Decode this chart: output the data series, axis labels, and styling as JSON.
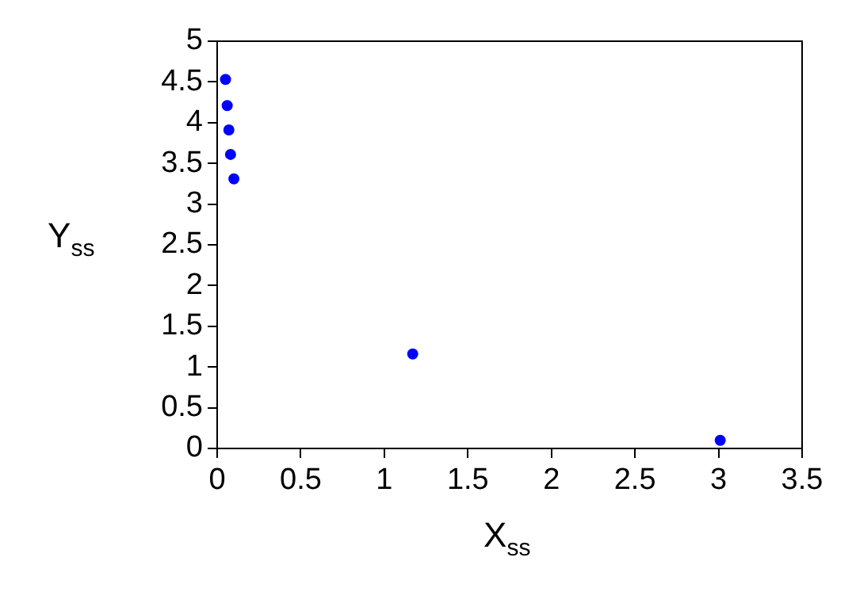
{
  "chart_data": {
    "type": "scatter",
    "xlabel": "X$_{ss}$",
    "ylabel": "Y$_{ss}$",
    "series": [
      {
        "color": "#0000ff",
        "x": [
          0.05,
          0.06,
          0.07,
          0.08,
          0.1,
          1.17,
          3.01
        ],
        "values": [
          4.53,
          4.21,
          3.91,
          3.61,
          3.31,
          1.16,
          0.1
        ]
      }
    ],
    "xlim": [
      0,
      3.5
    ],
    "xticks": [
      0,
      0.5,
      1,
      1.5,
      2,
      2.5,
      3,
      3.5
    ],
    "ylim": [
      0,
      5
    ],
    "yticks": [
      0,
      0.5,
      1,
      1.5,
      2,
      2.5,
      3,
      3.5,
      4,
      4.5,
      5
    ],
    "grid": false,
    "legend": false,
    "marker": "circle"
  }
}
